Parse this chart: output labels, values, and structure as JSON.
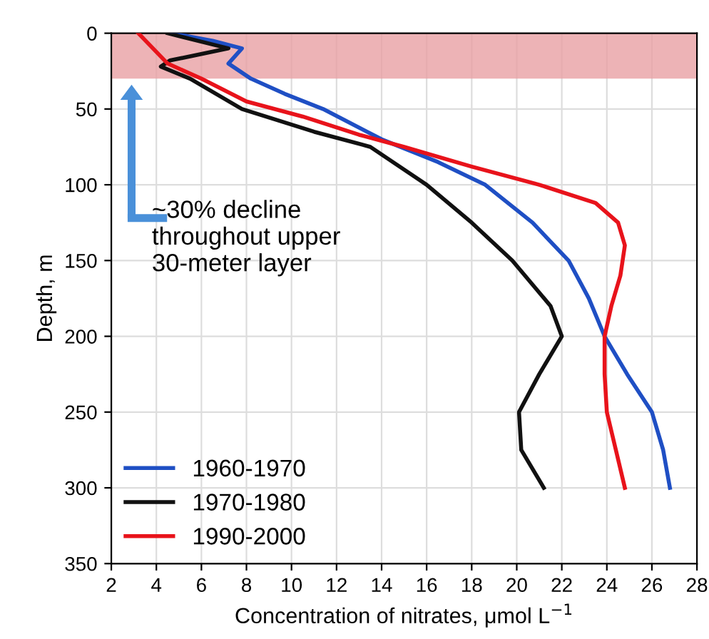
{
  "chart_data": {
    "type": "line",
    "xlabel": "Concentration of nitrates, μmol L$^{−1}$",
    "ylabel": "Depth, m",
    "series": [
      {
        "name": "1960-1970",
        "color": "#1f4fc4",
        "x": [
          4.7,
          6.5,
          7.8,
          7.2,
          8.2,
          9.7,
          11.4,
          14,
          16.5,
          18.6,
          20.7,
          22.3,
          23.2,
          23.9,
          24.9,
          26,
          26.5,
          26.8
        ],
        "values": [
          0,
          5,
          10,
          20,
          30,
          40,
          50,
          70,
          85,
          100,
          125,
          150,
          175,
          200,
          225,
          250,
          275,
          300
        ]
      },
      {
        "name": "1970-1980",
        "color": "#111111",
        "x": [
          4.5,
          7.2,
          4.6,
          4.2,
          5.5,
          7.8,
          11,
          13.5,
          16,
          18,
          19.8,
          21.5,
          22,
          21,
          20.1,
          20.2,
          21.2
        ],
        "values": [
          0,
          10,
          18,
          22,
          30,
          50,
          65,
          75,
          100,
          125,
          150,
          180,
          200,
          225,
          250,
          275,
          300
        ]
      },
      {
        "name": "1990-2000",
        "color": "#e8131b",
        "x": [
          3.2,
          4.5,
          6,
          8,
          10.5,
          13,
          15,
          18,
          21,
          23.5,
          24.5,
          24.8,
          24.6,
          24.2,
          23.9,
          23.9,
          24,
          24.4,
          24.8
        ],
        "values": [
          0,
          20,
          30,
          45,
          55,
          67,
          75,
          88,
          100,
          112,
          125,
          140,
          160,
          180,
          200,
          225,
          250,
          275,
          300
        ]
      }
    ],
    "xlim": [
      2,
      28
    ],
    "xticks": [
      2,
      4,
      6,
      8,
      10,
      12,
      14,
      16,
      18,
      20,
      22,
      24,
      26,
      28
    ],
    "ylim": [
      350,
      0
    ],
    "yticks": [
      0,
      50,
      100,
      150,
      200,
      250,
      300,
      350
    ],
    "bands": [
      {
        "axis": "y",
        "from": 0,
        "to": 30,
        "color": "#e8a0a4"
      }
    ],
    "annotations": [
      "~30% decline\nthroughout upper\n30-meter layer"
    ],
    "grid": true,
    "legend": "bottom left",
    "line_style": "solid"
  }
}
